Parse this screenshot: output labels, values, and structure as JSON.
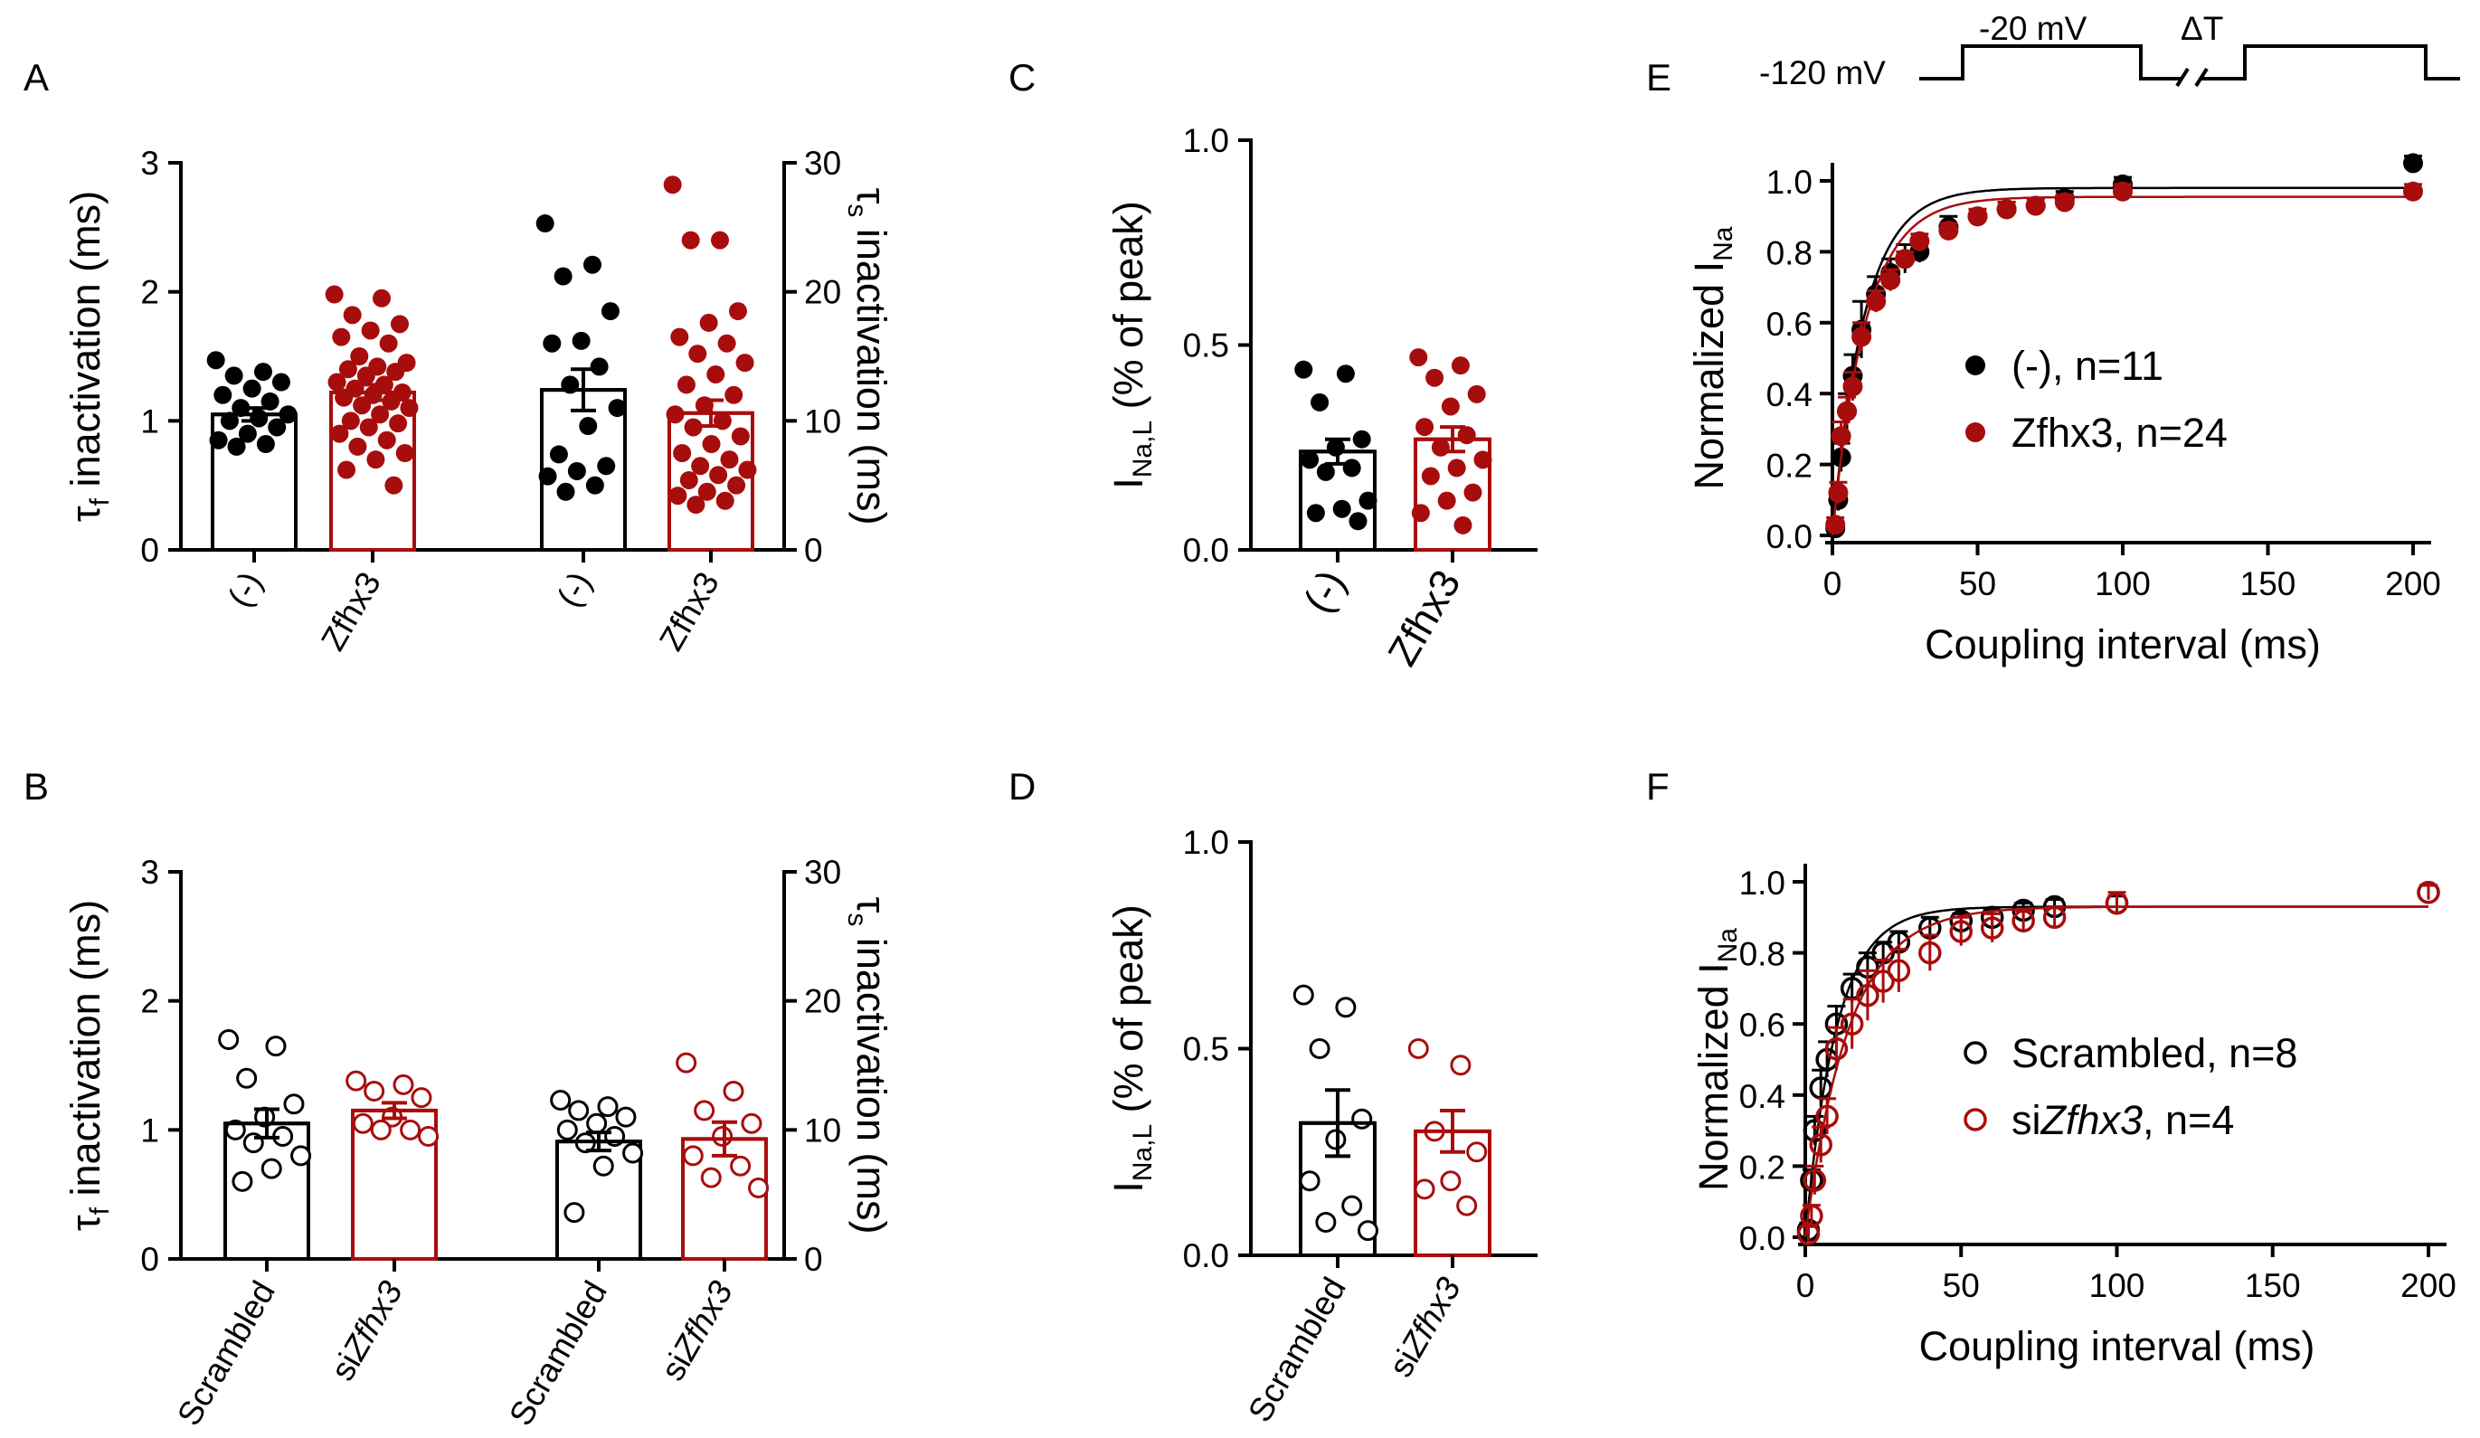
{
  "colors": {
    "black": "#000000",
    "red": "#a80d0d"
  },
  "chart_data": [
    {
      "panel": "A",
      "type": "bar",
      "ylabel_left": "τ_f inactivation (ms)",
      "ylim_left": [
        0,
        3
      ],
      "yticks_left": [
        "0",
        "1",
        "2",
        "3"
      ],
      "ylabel_right": "τ_s inactivation (ms)",
      "ylim_right": [
        0,
        30
      ],
      "yticks_right": [
        "0",
        "10",
        "20",
        "30"
      ],
      "categories": [
        "(-)",
        "Zfhx3",
        "(-)",
        "Zfhx3"
      ],
      "axis_of_category": [
        "left",
        "left",
        "right",
        "right"
      ],
      "means": [
        1.05,
        1.22,
        12.4,
        10.6
      ],
      "sem": [
        0.05,
        0.06,
        1.6,
        1.0
      ],
      "colors": [
        "black",
        "red",
        "black",
        "red"
      ],
      "marker": "filled",
      "points": [
        [
          1.47,
          1.38,
          1.35,
          1.3,
          1.25,
          1.2,
          1.15,
          1.1,
          1.05,
          1.02,
          1.0,
          0.95,
          0.9,
          0.85,
          0.82,
          0.8
        ],
        [
          1.98,
          1.95,
          1.82,
          1.75,
          1.7,
          1.65,
          1.6,
          1.5,
          1.45,
          1.42,
          1.4,
          1.38,
          1.35,
          1.3,
          1.28,
          1.25,
          1.22,
          1.2,
          1.18,
          1.15,
          1.12,
          1.1,
          1.05,
          1.0,
          0.98,
          0.95,
          0.9,
          0.85,
          0.8,
          0.75,
          0.7,
          0.62,
          0.5
        ],
        [
          25.3,
          22.1,
          21.2,
          18.5,
          16.2,
          16.0,
          14.2,
          12.8,
          11.0,
          9.6,
          7.4,
          6.5,
          6.1,
          5.7,
          5.0,
          4.5
        ],
        [
          28.3,
          24.0,
          24.0,
          18.5,
          17.6,
          16.5,
          16.0,
          15.2,
          14.5,
          13.6,
          12.8,
          12.0,
          11.2,
          10.5,
          10.0,
          9.5,
          8.8,
          8.2,
          7.5,
          7.0,
          6.5,
          6.2,
          5.8,
          5.4,
          5.0,
          4.5,
          4.2,
          3.8,
          3.5
        ]
      ]
    },
    {
      "panel": "B",
      "type": "bar",
      "ylabel_left": "τ_f inactivation (ms)",
      "ylim_left": [
        0,
        3
      ],
      "yticks_left": [
        "0",
        "1",
        "2",
        "3"
      ],
      "ylabel_right": "τ_s inactivation (ms)",
      "ylim_right": [
        0,
        30
      ],
      "yticks_right": [
        "0",
        "10",
        "20",
        "30"
      ],
      "categories": [
        "Scrambled",
        "siZfhx3",
        "Scrambled",
        "siZfhx3"
      ],
      "axis_of_category": [
        "left",
        "left",
        "right",
        "right"
      ],
      "means": [
        1.05,
        1.15,
        9.1,
        9.3
      ],
      "sem": [
        0.11,
        0.06,
        0.7,
        1.3
      ],
      "colors": [
        "black",
        "red",
        "black",
        "red"
      ],
      "marker": "open",
      "points": [
        [
          1.7,
          1.65,
          1.4,
          1.2,
          1.1,
          1.0,
          0.95,
          0.9,
          0.8,
          0.7,
          0.6
        ],
        [
          1.38,
          1.35,
          1.3,
          1.25,
          1.1,
          1.05,
          1.0,
          1.0,
          0.95
        ],
        [
          12.3,
          11.8,
          11.5,
          11.0,
          10.5,
          10.0,
          9.5,
          9.0,
          8.2,
          7.2,
          3.6
        ],
        [
          15.2,
          13.0,
          11.5,
          10.5,
          9.5,
          8.0,
          7.2,
          6.3,
          5.5
        ]
      ]
    },
    {
      "panel": "C",
      "type": "bar",
      "ylabel": "I_Na,L (% of peak)",
      "ylim": [
        0,
        1.0
      ],
      "yticks": [
        "0.0",
        "0.5",
        "1.0"
      ],
      "categories": [
        "(-)",
        "Zfhx3"
      ],
      "means": [
        0.24,
        0.27
      ],
      "sem": [
        0.03,
        0.03
      ],
      "colors": [
        "black",
        "red"
      ],
      "marker": "filled",
      "points": [
        [
          0.44,
          0.43,
          0.36,
          0.27,
          0.25,
          0.22,
          0.2,
          0.19,
          0.12,
          0.1,
          0.09,
          0.07
        ],
        [
          0.47,
          0.45,
          0.42,
          0.38,
          0.35,
          0.3,
          0.28,
          0.25,
          0.22,
          0.2,
          0.18,
          0.14,
          0.12,
          0.09,
          0.06
        ]
      ]
    },
    {
      "panel": "D",
      "type": "bar",
      "ylabel": "I_Na,L (% of peak)",
      "ylim": [
        0,
        1.0
      ],
      "yticks": [
        "0.0",
        "0.5",
        "1.0"
      ],
      "categories": [
        "Scrambled",
        "siZfhx3"
      ],
      "means": [
        0.32,
        0.3
      ],
      "sem": [
        0.08,
        0.05
      ],
      "colors": [
        "black",
        "red"
      ],
      "marker": "open",
      "points": [
        [
          0.63,
          0.6,
          0.5,
          0.33,
          0.28,
          0.18,
          0.12,
          0.08,
          0.06
        ],
        [
          0.5,
          0.46,
          0.3,
          0.25,
          0.18,
          0.16,
          0.12
        ]
      ]
    },
    {
      "panel": "E",
      "type": "scatter",
      "xlabel": "Coupling interval (ms)",
      "ylabel": "Normalized I_Na",
      "xlim": [
        0,
        200
      ],
      "ylim": [
        0,
        1.0
      ],
      "xticks": [
        "0",
        "50",
        "100",
        "150",
        "200"
      ],
      "yticks": [
        "0.0",
        "0.2",
        "0.4",
        "0.6",
        "0.8",
        "1.0"
      ],
      "marker": "filled",
      "series": [
        {
          "name": "(-), n=11",
          "color": "black",
          "x": [
            1,
            2,
            3,
            5,
            7,
            10,
            15,
            20,
            25,
            30,
            40,
            50,
            60,
            70,
            80,
            100,
            200
          ],
          "y": [
            0.02,
            0.1,
            0.22,
            0.35,
            0.45,
            0.58,
            0.68,
            0.74,
            0.78,
            0.8,
            0.87,
            0.9,
            0.92,
            0.93,
            0.95,
            0.99,
            1.05
          ],
          "err": [
            0.02,
            0.03,
            0.04,
            0.05,
            0.06,
            0.08,
            0.05,
            0.04,
            0.04,
            0.03,
            0.03,
            0.02,
            0.02,
            0.02,
            0.02,
            0.02,
            0.02
          ],
          "fit": {
            "ymax": 0.98,
            "tau": 11
          }
        },
        {
          "name": "Zfhx3, n=24",
          "color": "red",
          "x": [
            1,
            2,
            3,
            5,
            7,
            10,
            15,
            20,
            25,
            30,
            40,
            50,
            60,
            70,
            80,
            100,
            200
          ],
          "y": [
            0.03,
            0.12,
            0.28,
            0.35,
            0.42,
            0.56,
            0.66,
            0.72,
            0.78,
            0.83,
            0.86,
            0.9,
            0.92,
            0.93,
            0.94,
            0.97,
            0.97
          ],
          "err": [
            0.02,
            0.03,
            0.04,
            0.04,
            0.04,
            0.04,
            0.03,
            0.03,
            0.02,
            0.02,
            0.02,
            0.02,
            0.02,
            0.02,
            0.02,
            0.02,
            0.02
          ],
          "fit": {
            "ymax": 0.955,
            "tau": 11.5
          }
        }
      ],
      "protocol": {
        "label_hold": "-120 mV",
        "label_step": "-20 mV",
        "label_delta": "ΔT"
      }
    },
    {
      "panel": "F",
      "type": "scatter",
      "xlabel": "Coupling interval (ms)",
      "ylabel": "Normalized I_Na",
      "xlim": [
        0,
        200
      ],
      "ylim": [
        0,
        1.0
      ],
      "xticks": [
        "0",
        "50",
        "100",
        "150",
        "200"
      ],
      "yticks": [
        "0.0",
        "0.2",
        "0.4",
        "0.6",
        "0.8",
        "1.0"
      ],
      "marker": "open",
      "series": [
        {
          "name": "Scrambled, n=8",
          "color": "black",
          "x": [
            1,
            2,
            3,
            5,
            7,
            10,
            15,
            20,
            25,
            30,
            40,
            50,
            60,
            70,
            80,
            100,
            200
          ],
          "y": [
            0.02,
            0.16,
            0.3,
            0.42,
            0.5,
            0.6,
            0.7,
            0.76,
            0.8,
            0.83,
            0.87,
            0.89,
            0.9,
            0.92,
            0.93,
            0.94,
            0.97
          ],
          "err": [
            0.02,
            0.03,
            0.04,
            0.05,
            0.05,
            0.05,
            0.04,
            0.04,
            0.03,
            0.03,
            0.03,
            0.02,
            0.02,
            0.02,
            0.02,
            0.02,
            0.02
          ],
          "fit": {
            "ymax": 0.93,
            "tau": 10
          }
        },
        {
          "name": "siZfhx3, n=4",
          "color": "red",
          "x": [
            1,
            2,
            3,
            5,
            7,
            10,
            15,
            20,
            25,
            30,
            40,
            50,
            60,
            70,
            80,
            100,
            200
          ],
          "y": [
            0.01,
            0.06,
            0.16,
            0.26,
            0.34,
            0.53,
            0.6,
            0.68,
            0.72,
            0.75,
            0.8,
            0.86,
            0.87,
            0.89,
            0.9,
            0.94,
            0.97
          ],
          "err": [
            0.02,
            0.03,
            0.04,
            0.05,
            0.05,
            0.06,
            0.07,
            0.07,
            0.06,
            0.06,
            0.05,
            0.04,
            0.04,
            0.03,
            0.03,
            0.03,
            0.02
          ],
          "fit": {
            "ymax": 0.93,
            "tau": 14
          }
        }
      ]
    }
  ]
}
